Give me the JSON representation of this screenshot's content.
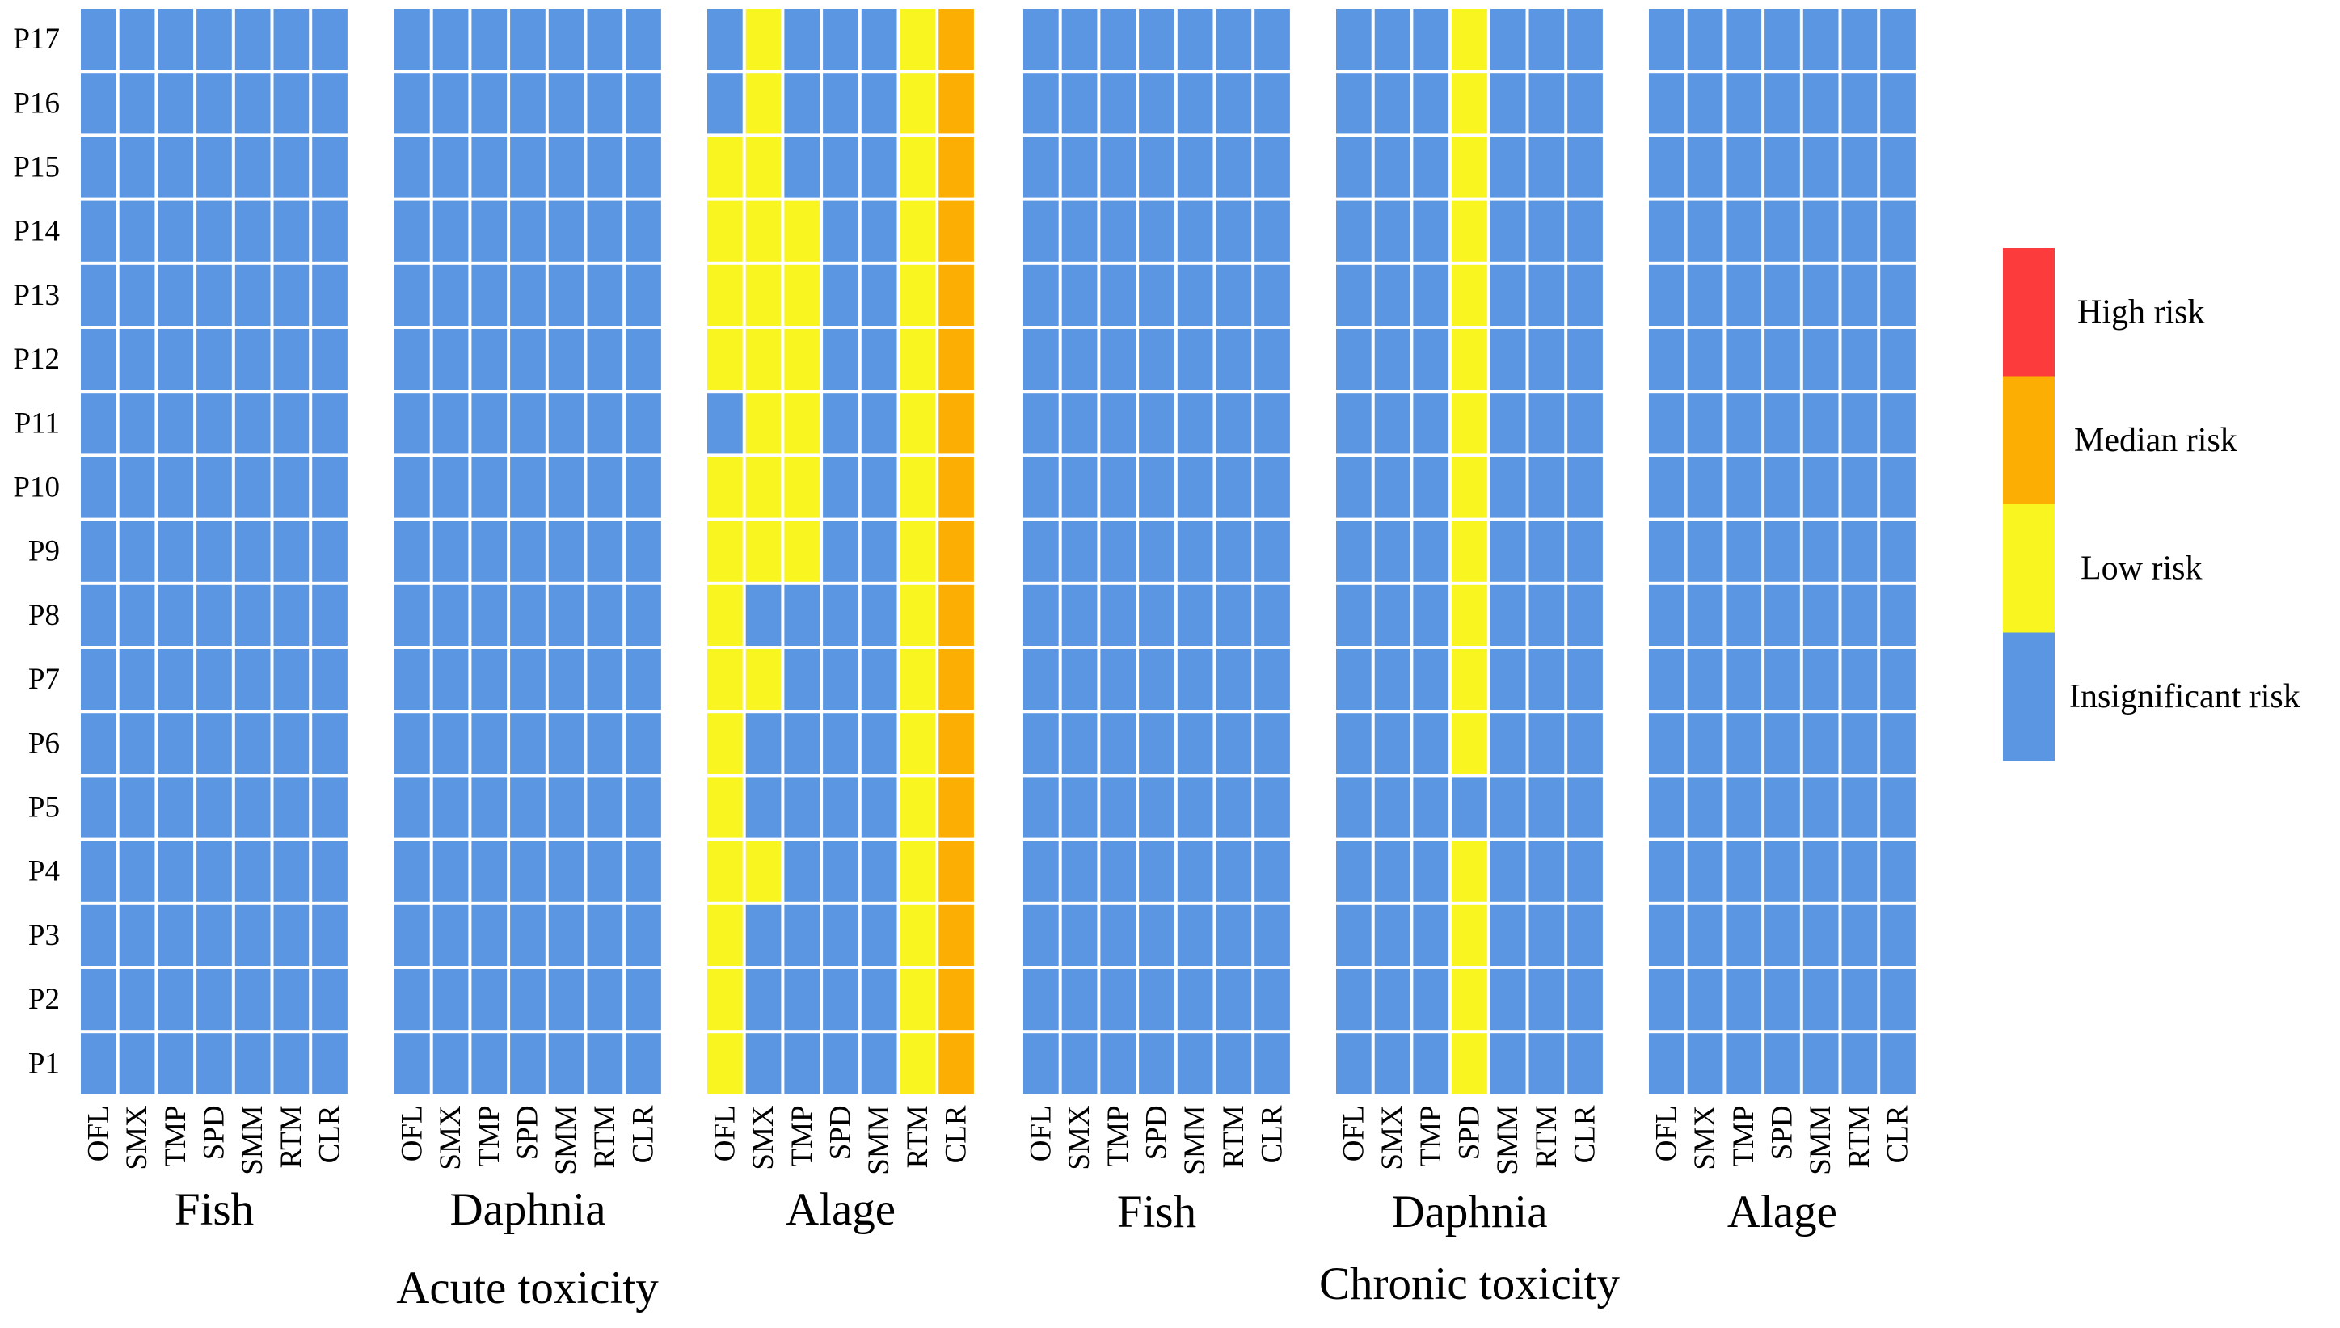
{
  "colors": {
    "insignificant": "#5B96E2",
    "low": "#F8F521",
    "median": "#FCAF02",
    "high": "#FC3B3C",
    "grid": "#FFFFFF"
  },
  "chart_data": {
    "type": "heatmap",
    "title": "",
    "rows": [
      "P1",
      "P2",
      "P3",
      "P4",
      "P5",
      "P6",
      "P7",
      "P8",
      "P9",
      "P10",
      "P11",
      "P12",
      "P13",
      "P14",
      "P15",
      "P16",
      "P17"
    ],
    "row_order": "bottom-to-top",
    "columns": [
      "OFL",
      "SMX",
      "TMP",
      "SPD",
      "SMM",
      "RTM",
      "CLR"
    ],
    "value_scale": {
      "0": "Insignificant risk",
      "1": "Low risk",
      "2": "Median risk",
      "3": "High risk"
    },
    "legend": {
      "position": "right",
      "items": [
        {
          "label": "High risk",
          "color_key": "high"
        },
        {
          "label": "Median risk",
          "color_key": "median"
        },
        {
          "label": "Low risk",
          "color_key": "low"
        },
        {
          "label": "Insignificant risk",
          "color_key": "insignificant"
        }
      ]
    },
    "groups": [
      {
        "name": "Acute toxicity",
        "panels": [
          {
            "label": "Fish",
            "matrix": [
              [
                0,
                0,
                0,
                0,
                0,
                0,
                0
              ],
              [
                0,
                0,
                0,
                0,
                0,
                0,
                0
              ],
              [
                0,
                0,
                0,
                0,
                0,
                0,
                0
              ],
              [
                0,
                0,
                0,
                0,
                0,
                0,
                0
              ],
              [
                0,
                0,
                0,
                0,
                0,
                0,
                0
              ],
              [
                0,
                0,
                0,
                0,
                0,
                0,
                0
              ],
              [
                0,
                0,
                0,
                0,
                0,
                0,
                0
              ],
              [
                0,
                0,
                0,
                0,
                0,
                0,
                0
              ],
              [
                0,
                0,
                0,
                0,
                0,
                0,
                0
              ],
              [
                0,
                0,
                0,
                0,
                0,
                0,
                0
              ],
              [
                0,
                0,
                0,
                0,
                0,
                0,
                0
              ],
              [
                0,
                0,
                0,
                0,
                0,
                0,
                0
              ],
              [
                0,
                0,
                0,
                0,
                0,
                0,
                0
              ],
              [
                0,
                0,
                0,
                0,
                0,
                0,
                0
              ],
              [
                0,
                0,
                0,
                0,
                0,
                0,
                0
              ],
              [
                0,
                0,
                0,
                0,
                0,
                0,
                0
              ],
              [
                0,
                0,
                0,
                0,
                0,
                0,
                0
              ]
            ]
          },
          {
            "label": "Daphnia",
            "matrix": [
              [
                0,
                0,
                0,
                0,
                0,
                0,
                0
              ],
              [
                0,
                0,
                0,
                0,
                0,
                0,
                0
              ],
              [
                0,
                0,
                0,
                0,
                0,
                0,
                0
              ],
              [
                0,
                0,
                0,
                0,
                0,
                0,
                0
              ],
              [
                0,
                0,
                0,
                0,
                0,
                0,
                0
              ],
              [
                0,
                0,
                0,
                0,
                0,
                0,
                0
              ],
              [
                0,
                0,
                0,
                0,
                0,
                0,
                0
              ],
              [
                0,
                0,
                0,
                0,
                0,
                0,
                0
              ],
              [
                0,
                0,
                0,
                0,
                0,
                0,
                0
              ],
              [
                0,
                0,
                0,
                0,
                0,
                0,
                0
              ],
              [
                0,
                0,
                0,
                0,
                0,
                0,
                0
              ],
              [
                0,
                0,
                0,
                0,
                0,
                0,
                0
              ],
              [
                0,
                0,
                0,
                0,
                0,
                0,
                0
              ],
              [
                0,
                0,
                0,
                0,
                0,
                0,
                0
              ],
              [
                0,
                0,
                0,
                0,
                0,
                0,
                0
              ],
              [
                0,
                0,
                0,
                0,
                0,
                0,
                0
              ],
              [
                0,
                0,
                0,
                0,
                0,
                0,
                0
              ]
            ]
          },
          {
            "label": "Alage",
            "matrix": [
              [
                1,
                0,
                0,
                0,
                0,
                1,
                2
              ],
              [
                1,
                0,
                0,
                0,
                0,
                1,
                2
              ],
              [
                1,
                0,
                0,
                0,
                0,
                1,
                2
              ],
              [
                1,
                1,
                0,
                0,
                0,
                1,
                2
              ],
              [
                1,
                0,
                0,
                0,
                0,
                1,
                2
              ],
              [
                1,
                0,
                0,
                0,
                0,
                1,
                2
              ],
              [
                1,
                1,
                0,
                0,
                0,
                1,
                2
              ],
              [
                1,
                0,
                0,
                0,
                0,
                1,
                2
              ],
              [
                1,
                1,
                1,
                0,
                0,
                1,
                2
              ],
              [
                1,
                1,
                1,
                0,
                0,
                1,
                2
              ],
              [
                0,
                1,
                1,
                0,
                0,
                1,
                2
              ],
              [
                1,
                1,
                1,
                0,
                0,
                1,
                2
              ],
              [
                1,
                1,
                1,
                0,
                0,
                1,
                2
              ],
              [
                1,
                1,
                1,
                0,
                0,
                1,
                2
              ],
              [
                1,
                1,
                0,
                0,
                0,
                1,
                2
              ],
              [
                0,
                1,
                0,
                0,
                0,
                1,
                2
              ],
              [
                0,
                1,
                0,
                0,
                0,
                1,
                2
              ]
            ]
          }
        ]
      },
      {
        "name": "Chronic toxicity",
        "panels": [
          {
            "label": "Fish",
            "matrix": [
              [
                0,
                0,
                0,
                0,
                0,
                0,
                0
              ],
              [
                0,
                0,
                0,
                0,
                0,
                0,
                0
              ],
              [
                0,
                0,
                0,
                0,
                0,
                0,
                0
              ],
              [
                0,
                0,
                0,
                0,
                0,
                0,
                0
              ],
              [
                0,
                0,
                0,
                0,
                0,
                0,
                0
              ],
              [
                0,
                0,
                0,
                0,
                0,
                0,
                0
              ],
              [
                0,
                0,
                0,
                0,
                0,
                0,
                0
              ],
              [
                0,
                0,
                0,
                0,
                0,
                0,
                0
              ],
              [
                0,
                0,
                0,
                0,
                0,
                0,
                0
              ],
              [
                0,
                0,
                0,
                0,
                0,
                0,
                0
              ],
              [
                0,
                0,
                0,
                0,
                0,
                0,
                0
              ],
              [
                0,
                0,
                0,
                0,
                0,
                0,
                0
              ],
              [
                0,
                0,
                0,
                0,
                0,
                0,
                0
              ],
              [
                0,
                0,
                0,
                0,
                0,
                0,
                0
              ],
              [
                0,
                0,
                0,
                0,
                0,
                0,
                0
              ],
              [
                0,
                0,
                0,
                0,
                0,
                0,
                0
              ],
              [
                0,
                0,
                0,
                0,
                0,
                0,
                0
              ]
            ]
          },
          {
            "label": "Daphnia",
            "matrix": [
              [
                0,
                0,
                0,
                1,
                0,
                0,
                0
              ],
              [
                0,
                0,
                0,
                1,
                0,
                0,
                0
              ],
              [
                0,
                0,
                0,
                1,
                0,
                0,
                0
              ],
              [
                0,
                0,
                0,
                1,
                0,
                0,
                0
              ],
              [
                0,
                0,
                0,
                0,
                0,
                0,
                0
              ],
              [
                0,
                0,
                0,
                1,
                0,
                0,
                0
              ],
              [
                0,
                0,
                0,
                1,
                0,
                0,
                0
              ],
              [
                0,
                0,
                0,
                1,
                0,
                0,
                0
              ],
              [
                0,
                0,
                0,
                1,
                0,
                0,
                0
              ],
              [
                0,
                0,
                0,
                1,
                0,
                0,
                0
              ],
              [
                0,
                0,
                0,
                1,
                0,
                0,
                0
              ],
              [
                0,
                0,
                0,
                1,
                0,
                0,
                0
              ],
              [
                0,
                0,
                0,
                1,
                0,
                0,
                0
              ],
              [
                0,
                0,
                0,
                1,
                0,
                0,
                0
              ],
              [
                0,
                0,
                0,
                1,
                0,
                0,
                0
              ],
              [
                0,
                0,
                0,
                1,
                0,
                0,
                0
              ],
              [
                0,
                0,
                0,
                1,
                0,
                0,
                0
              ]
            ]
          },
          {
            "label": "Alage",
            "matrix": [
              [
                0,
                0,
                0,
                0,
                0,
                0,
                0
              ],
              [
                0,
                0,
                0,
                0,
                0,
                0,
                0
              ],
              [
                0,
                0,
                0,
                0,
                0,
                0,
                0
              ],
              [
                0,
                0,
                0,
                0,
                0,
                0,
                0
              ],
              [
                0,
                0,
                0,
                0,
                0,
                0,
                0
              ],
              [
                0,
                0,
                0,
                0,
                0,
                0,
                0
              ],
              [
                0,
                0,
                0,
                0,
                0,
                0,
                0
              ],
              [
                0,
                0,
                0,
                0,
                0,
                0,
                0
              ],
              [
                0,
                0,
                0,
                0,
                0,
                0,
                0
              ],
              [
                0,
                0,
                0,
                0,
                0,
                0,
                0
              ],
              [
                0,
                0,
                0,
                0,
                0,
                0,
                0
              ],
              [
                0,
                0,
                0,
                0,
                0,
                0,
                0
              ],
              [
                0,
                0,
                0,
                0,
                0,
                0,
                0
              ],
              [
                0,
                0,
                0,
                0,
                0,
                0,
                0
              ],
              [
                0,
                0,
                0,
                0,
                0,
                0,
                0
              ],
              [
                0,
                0,
                0,
                0,
                0,
                0,
                0
              ],
              [
                0,
                0,
                0,
                0,
                0,
                0,
                0
              ]
            ]
          }
        ]
      }
    ]
  }
}
